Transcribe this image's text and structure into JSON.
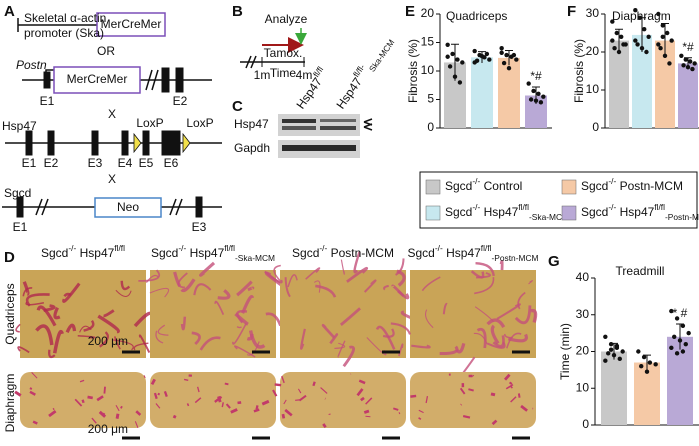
{
  "panel_labels": [
    "A",
    "B",
    "C",
    "D",
    "E",
    "F",
    "G"
  ],
  "panel_a": {
    "ska_promoter": [
      "Skeletal α-actin",
      "promoter (Ska)"
    ],
    "ska_cassette": "MerCreMer",
    "or": "OR",
    "postn": "Postn",
    "postn_cassette": "MerCreMer",
    "postn_exons": [
      "E1",
      "E2"
    ],
    "cross1": "X",
    "hsp47": "Hsp47",
    "hsp47_exons": [
      "E1",
      "E2",
      "E3",
      "E4",
      "E5",
      "E6"
    ],
    "loxp": [
      "LoxP",
      "LoxP"
    ],
    "cross2": "X",
    "sgcd": "Sgcd",
    "neo": "Neo",
    "sgcd_exons": [
      "E1",
      "E3"
    ]
  },
  "panel_b": {
    "analyze": "Analyze",
    "tamoxifen": "Tamox.",
    "start": "1m",
    "axis": "Time",
    "end": "4m"
  },
  "panel_c": {
    "lanes": [
      [
        {
          "t": "Hsp47"
        },
        {
          "sup": "fl/fl"
        }
      ],
      [
        {
          "t": "Hsp47"
        },
        {
          "sup": "fl/fl-"
        },
        {
          "sub": "Ska-MCM"
        }
      ]
    ],
    "bands": [
      "Hsp47",
      "Gapdh"
    ]
  },
  "panel_d": {
    "columns": [
      [
        {
          "t": "Sgcd"
        },
        {
          "sup": "-/-"
        },
        {
          "t": " Hsp47"
        },
        {
          "sup": "fl/fl"
        }
      ],
      [
        {
          "t": "Sgcd"
        },
        {
          "sup": "-/-"
        },
        {
          "t": " Hsp47"
        },
        {
          "sup": "fl/fl"
        },
        {
          "sub": "-Ska-MCM"
        }
      ],
      [
        {
          "t": "Sgcd"
        },
        {
          "sup": "-/-"
        },
        {
          "t": " Postn-MCM"
        }
      ],
      [
        {
          "t": "Sgcd"
        },
        {
          "sup": "-/-"
        },
        {
          "t": " Hsp47"
        },
        {
          "sup": "fl/fl"
        },
        {
          "sub": "-Postn-MCM"
        }
      ]
    ],
    "rows": [
      "Quadriceps",
      "Diaphragm"
    ],
    "scale_bars": [
      "200 μm",
      "200 μm"
    ]
  },
  "legend": [
    {
      "label": [
        {
          "t": "Sgcd"
        },
        {
          "sup": "-/-"
        },
        {
          "t": " Control"
        }
      ],
      "color": "#c8c8c8"
    },
    {
      "label": [
        {
          "t": "Sgcd"
        },
        {
          "sup": "-/-"
        },
        {
          "t": " Postn-MCM"
        }
      ],
      "color": "#f5c9a6"
    },
    {
      "label": [
        {
          "t": "Sgcd"
        },
        {
          "sup": "-/-"
        },
        {
          "t": " Hsp47"
        },
        {
          "sup": "fl/fl"
        },
        {
          "sub": "-Ska-MCM"
        }
      ],
      "color": "#c7e8ef"
    },
    {
      "label": [
        {
          "t": "Sgcd"
        },
        {
          "sup": "-/-"
        },
        {
          "t": " Hsp47"
        },
        {
          "sup": "fl/fl"
        },
        {
          "sub": "-Postn-MCM"
        }
      ],
      "color": "#b9a9d6"
    }
  ],
  "chart_data": [
    {
      "type": "bar",
      "title": "Quadriceps",
      "y_label": "Fibrosis (%)",
      "categories": [
        null,
        null,
        null,
        null
      ],
      "values": [
        11.5,
        12.4,
        12.3,
        5.7
      ],
      "errors": [
        3.2,
        1.0,
        1.3,
        1.5
      ],
      "colors": [
        "#c8c8c8",
        "#c7e8ef",
        "#f5c9a6",
        "#b9a9d6"
      ],
      "points": [
        [
          14.6,
          13.0,
          12.0,
          11.5,
          10.8,
          9.0,
          8.0,
          12.5
        ],
        [
          13.5,
          12.8,
          12.4,
          12.0,
          11.8,
          12.6,
          13.0,
          11.5
        ],
        [
          14.0,
          12.8,
          12.5,
          12.0,
          11.4,
          10.5,
          12.8,
          13.2
        ],
        [
          7.8,
          6.5,
          6.0,
          5.5,
          5.0,
          4.8,
          4.5
        ]
      ],
      "ylim": [
        0,
        20
      ],
      "yticks": [
        0,
        5,
        10,
        15,
        20
      ],
      "annotation": "*#"
    },
    {
      "type": "bar",
      "title": "Diaphragm",
      "y_label": "Fibrosis (%)",
      "categories": [
        null,
        null,
        null,
        null
      ],
      "values": [
        23,
        24.5,
        23,
        17
      ],
      "errors": [
        3,
        4.5,
        4.5,
        1.5
      ],
      "colors": [
        "#c8c8c8",
        "#c7e8ef",
        "#f5c9a6",
        "#b9a9d6"
      ],
      "points": [
        [
          28,
          25,
          24,
          22,
          21,
          20,
          22,
          23
        ],
        [
          31,
          29,
          26,
          24,
          22,
          21,
          20,
          23
        ],
        [
          30,
          27,
          25,
          23,
          21,
          19,
          17,
          22,
          24
        ],
        [
          19,
          18,
          17.5,
          17,
          16.5,
          16,
          15.5
        ]
      ],
      "ylim": [
        0,
        30
      ],
      "yticks": [
        0,
        10,
        20,
        30
      ],
      "annotation": "*#"
    },
    {
      "type": "bar",
      "title": "Treadmill",
      "y_label": "Time (min)",
      "categories": [
        null,
        null,
        null
      ],
      "values": [
        20,
        17,
        24
      ],
      "errors": [
        2.2,
        2,
        3.5
      ],
      "colors": [
        "#c8c8c8",
        "#f5c9a6",
        "#b9a9d6"
      ],
      "points": [
        [
          24,
          22,
          21,
          20,
          19.5,
          19,
          18,
          17.5,
          20.5,
          21.5
        ],
        [
          20,
          18.5,
          17,
          16.5,
          16,
          14.5
        ],
        [
          31,
          29,
          27,
          25,
          24,
          23,
          22,
          21,
          19.5,
          20
        ]
      ],
      "ylim": [
        0,
        40
      ],
      "yticks": [
        0,
        10,
        20,
        30,
        40
      ],
      "annotation": "* #"
    }
  ]
}
